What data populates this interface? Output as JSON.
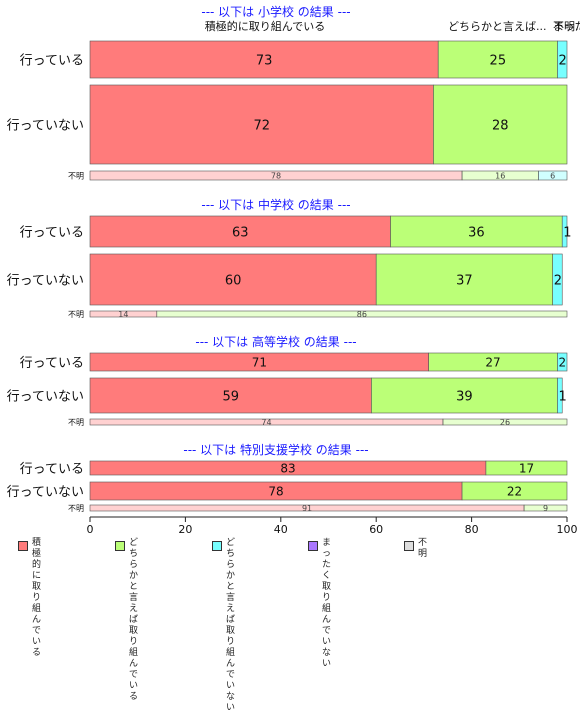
{
  "chart_data": {
    "type": "bar",
    "orientation": "horizontal",
    "stacked": true,
    "xlim": [
      0,
      100
    ],
    "xticks": [
      "0",
      "20",
      "40",
      "60",
      "80",
      "100"
    ],
    "category_names": [
      "積極的に取り組んでいる",
      "どちらかと言えば取り組んでいる",
      "どちらかと言えば取り組んでいない",
      "まったく取り組んでいない",
      "不明"
    ],
    "colors": [
      "#ff7b7b",
      "#bbff77",
      "#77ffff",
      "#aa77ff",
      "#dddddd"
    ],
    "top_labels": [
      "積極的に取り組んでいる",
      "どちらかと言えば...",
      "まったく...",
      "不明..."
    ],
    "panels": [
      {
        "title": "--- 以下は 小学校 の結果 ---",
        "rows": [
          {
            "label": "行っている",
            "values": [
              73,
              25,
              2,
              0,
              0
            ]
          },
          {
            "label": "行っていない",
            "values": [
              72,
              28,
              0,
              0,
              0
            ]
          },
          {
            "label": "不明",
            "values": [
              78,
              16,
              6,
              0,
              0
            ]
          }
        ]
      },
      {
        "title": "--- 以下は 中学校 の結果 ---",
        "rows": [
          {
            "label": "行っている",
            "values": [
              63,
              36,
              1,
              0,
              0
            ]
          },
          {
            "label": "行っていない",
            "values": [
              60,
              37,
              2,
              0,
              0
            ]
          },
          {
            "label": "不明",
            "values": [
              14,
              86,
              0,
              0,
              0
            ]
          }
        ]
      },
      {
        "title": "--- 以下は 高等学校 の結果 ---",
        "rows": [
          {
            "label": "行っている",
            "values": [
              71,
              27,
              2,
              0,
              0
            ]
          },
          {
            "label": "行っていない",
            "values": [
              59,
              39,
              1,
              0,
              0
            ]
          },
          {
            "label": "不明",
            "values": [
              74,
              26,
              0,
              0,
              0
            ]
          }
        ]
      },
      {
        "title": "--- 以下は 特別支援学校 の結果 ---",
        "rows": [
          {
            "label": "行っている",
            "values": [
              83,
              17,
              0,
              0,
              0
            ]
          },
          {
            "label": "行っていない",
            "values": [
              78,
              22,
              0,
              0,
              0
            ]
          },
          {
            "label": "不明",
            "values": [
              91,
              9,
              0,
              0,
              0
            ]
          }
        ]
      }
    ],
    "legend": [
      {
        "label": "積極的に\n取り組んでいる"
      },
      {
        "label": "どちらかと言えば\n取り組んでいる"
      },
      {
        "label": "どちらかと言えば\n取り組んでいない"
      },
      {
        "label": "まったく\n取り組んでいない"
      },
      {
        "label": "不明"
      }
    ]
  }
}
